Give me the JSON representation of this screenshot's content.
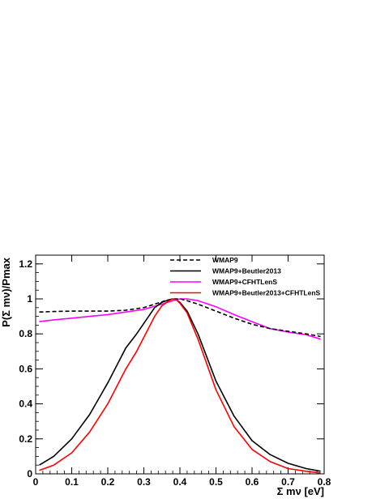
{
  "chart_data": {
    "type": "line",
    "title": "",
    "xlabel": "Σ mν [eV]",
    "ylabel": "P(Σ mν)/Pmax",
    "xlim": [
      0,
      0.8
    ],
    "ylim": [
      0,
      1.25
    ],
    "xticks": [
      "0",
      "0.1",
      "0.2",
      "0.3",
      "0.4",
      "0.5",
      "0.6",
      "0.7",
      "0.8"
    ],
    "yticks": [
      "0",
      "0.2",
      "0.4",
      "0.6",
      "0.8",
      "1",
      "1.2"
    ],
    "grid": false,
    "legend_position": "top-right",
    "series": [
      {
        "name": "WMAP9",
        "color": "#000000",
        "dash": "dashed",
        "x": [
          0.01,
          0.05,
          0.1,
          0.15,
          0.2,
          0.25,
          0.3,
          0.33,
          0.36,
          0.38,
          0.4,
          0.42,
          0.45,
          0.5,
          0.55,
          0.6,
          0.65,
          0.7,
          0.75,
          0.79
        ],
        "y": [
          0.925,
          0.928,
          0.93,
          0.93,
          0.93,
          0.935,
          0.95,
          0.97,
          0.99,
          1.0,
          1.0,
          0.99,
          0.97,
          0.93,
          0.89,
          0.855,
          0.83,
          0.815,
          0.8,
          0.785
        ]
      },
      {
        "name": "WMAP9+Beutler2013",
        "color": "#000000",
        "dash": "solid",
        "x": [
          0.01,
          0.05,
          0.1,
          0.15,
          0.2,
          0.25,
          0.28,
          0.3,
          0.33,
          0.35,
          0.37,
          0.38,
          0.39,
          0.4,
          0.42,
          0.45,
          0.5,
          0.55,
          0.6,
          0.65,
          0.7,
          0.75,
          0.79
        ],
        "y": [
          0.05,
          0.1,
          0.2,
          0.34,
          0.52,
          0.72,
          0.8,
          0.86,
          0.95,
          0.98,
          0.995,
          1.0,
          0.995,
          0.98,
          0.93,
          0.8,
          0.53,
          0.33,
          0.19,
          0.11,
          0.06,
          0.03,
          0.015
        ]
      },
      {
        "name": "WMAP9+CFHTLenS",
        "color": "#ff00ff",
        "dash": "solid",
        "x": [
          0.01,
          0.05,
          0.1,
          0.15,
          0.2,
          0.25,
          0.3,
          0.35,
          0.38,
          0.4,
          0.42,
          0.45,
          0.5,
          0.55,
          0.6,
          0.65,
          0.7,
          0.75,
          0.79
        ],
        "y": [
          0.87,
          0.88,
          0.89,
          0.9,
          0.91,
          0.925,
          0.94,
          0.97,
          0.99,
          1.0,
          1.0,
          0.99,
          0.955,
          0.91,
          0.87,
          0.83,
          0.81,
          0.795,
          0.77
        ]
      },
      {
        "name": "WMAP9+Beutler2013+CFHTLenS",
        "color": "#ff0000",
        "dash": "solid",
        "x": [
          0.01,
          0.05,
          0.1,
          0.15,
          0.2,
          0.25,
          0.28,
          0.3,
          0.33,
          0.35,
          0.37,
          0.38,
          0.39,
          0.4,
          0.42,
          0.45,
          0.5,
          0.55,
          0.6,
          0.65,
          0.7,
          0.75,
          0.79
        ],
        "y": [
          0.02,
          0.05,
          0.12,
          0.24,
          0.4,
          0.6,
          0.7,
          0.78,
          0.9,
          0.96,
          0.99,
          1.0,
          0.995,
          0.975,
          0.92,
          0.77,
          0.48,
          0.27,
          0.14,
          0.07,
          0.03,
          0.015,
          0.005
        ]
      }
    ]
  }
}
